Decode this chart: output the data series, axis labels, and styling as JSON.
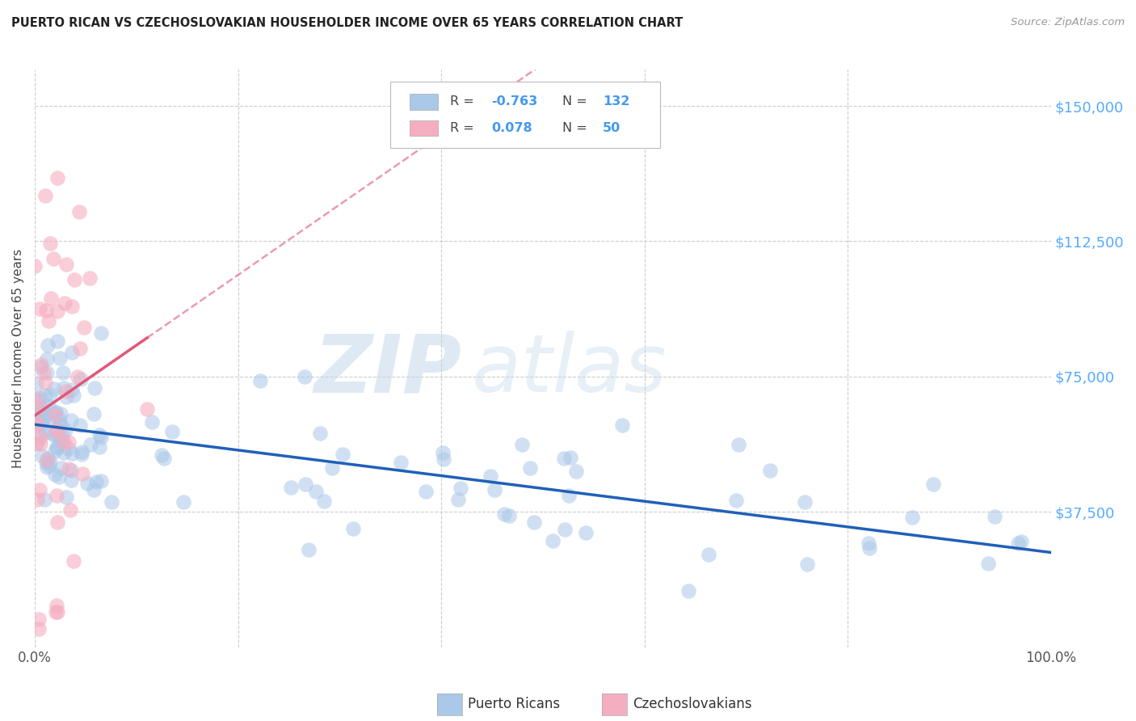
{
  "title": "PUERTO RICAN VS CZECHOSLOVAKIAN HOUSEHOLDER INCOME OVER 65 YEARS CORRELATION CHART",
  "source": "Source: ZipAtlas.com",
  "ylabel": "Householder Income Over 65 years",
  "xlim": [
    0,
    1.0
  ],
  "ylim": [
    0,
    160000
  ],
  "blue_R": -0.763,
  "blue_N": 132,
  "pink_R": 0.078,
  "pink_N": 50,
  "blue_color": "#aac8e8",
  "pink_color": "#f5aec0",
  "blue_line_color": "#2060b8",
  "pink_line_color": "#e05878",
  "watermark_zip": "ZIP",
  "watermark_atlas": "atlas",
  "legend_label_blue": "Puerto Ricans",
  "legend_label_pink": "Czechoslovakians",
  "R_N_color": "#4499ee",
  "ylabel_color": "#444444",
  "ytick_color": "#55aaff",
  "xtick_color": "#555555",
  "grid_color": "#cccccc",
  "title_color": "#222222",
  "source_color": "#999999"
}
